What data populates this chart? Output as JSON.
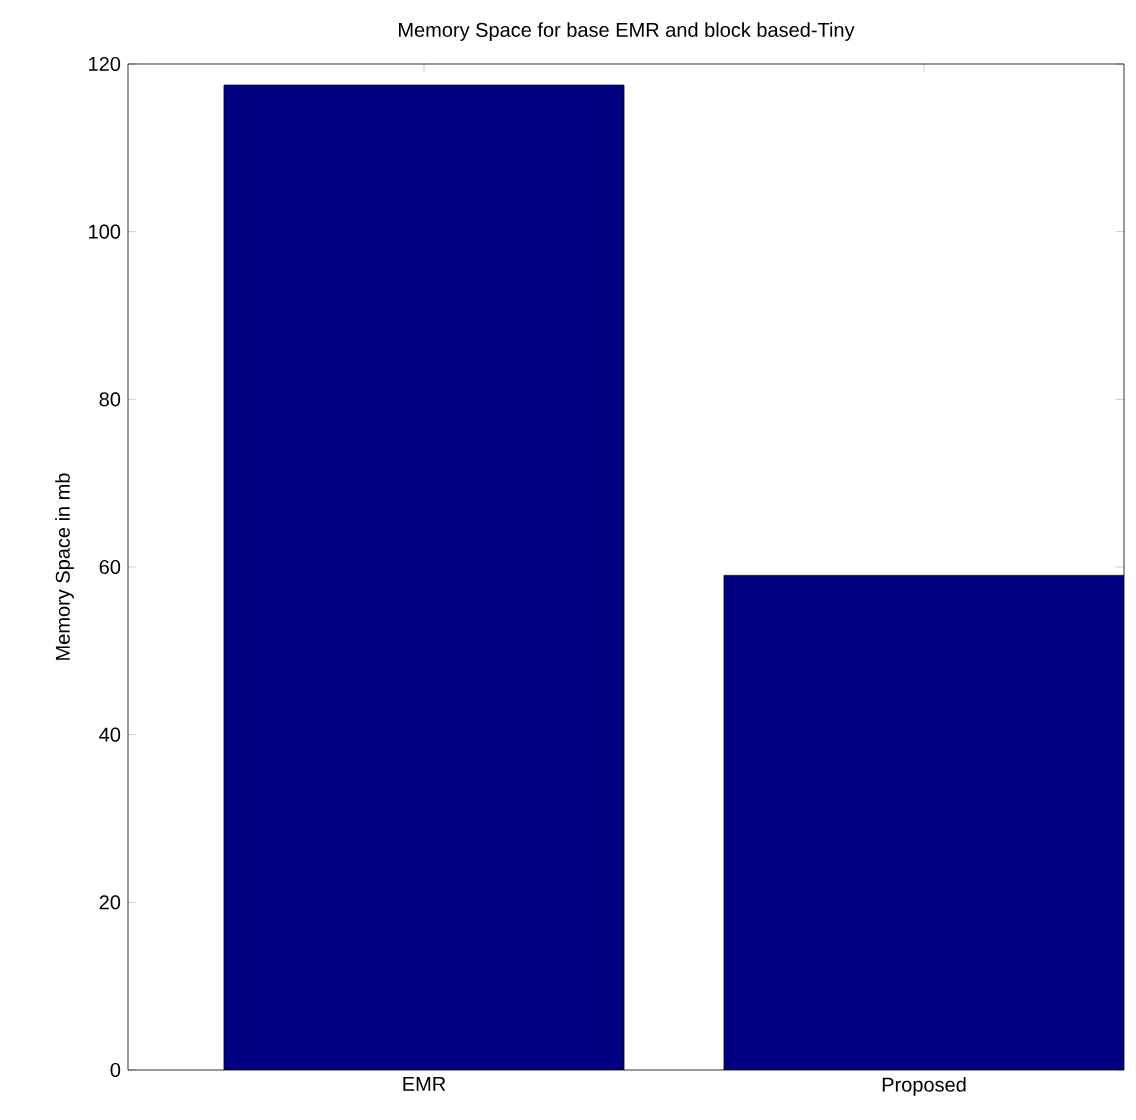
{
  "chart_data": {
    "type": "bar",
    "title": "Memory Space for base EMR and block based-Tiny",
    "ylabel": "Memory Space in mb",
    "categories": [
      "EMR",
      "Proposed"
    ],
    "values": [
      117.5,
      59
    ],
    "color": "#000080",
    "ylim": [
      0,
      120
    ],
    "yticks": [
      0,
      20,
      40,
      60,
      80,
      100,
      120
    ],
    "grid": false
  }
}
